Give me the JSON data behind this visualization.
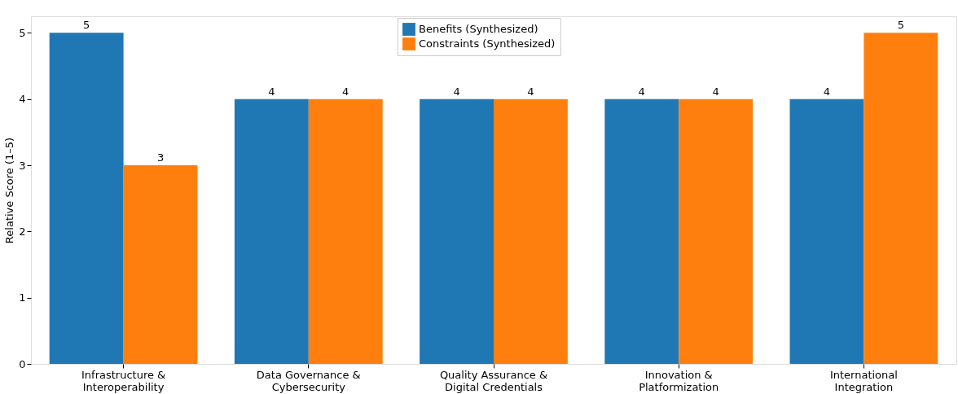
{
  "chart_data": {
    "type": "bar",
    "ylabel": "Relative Score (1–5)",
    "categories": [
      "Infrastructure &\nInteroperability",
      "Data Governance &\nCybersecurity",
      "Quality Assurance &\nDigital Credentials",
      "Innovation &\nPlatformization",
      "International\nIntegration"
    ],
    "series": [
      {
        "name": "Benefits (Synthesized)",
        "color": "#1f77b4",
        "values": [
          5,
          4,
          4,
          4,
          4
        ]
      },
      {
        "name": "Constraints (Synthesized)",
        "color": "#ff7f0e",
        "values": [
          3,
          4,
          4,
          4,
          5
        ]
      }
    ],
    "ylim": [
      0,
      5.25
    ],
    "yticks": [
      0,
      1,
      2,
      3,
      4,
      5
    ],
    "grid": false,
    "legend": "top",
    "data_labels": true
  }
}
